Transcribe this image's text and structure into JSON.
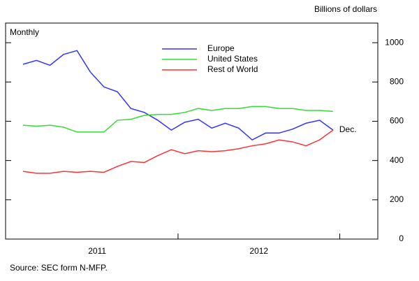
{
  "chart_data": {
    "type": "line",
    "unit_label": "Billions of dollars",
    "frequency_label": "Monthly",
    "source": "Source: SEC form N-MFP.",
    "end_annotation": "Dec.",
    "categories": [
      null,
      null,
      null,
      null,
      null,
      null,
      null,
      null,
      null,
      null,
      null,
      null,
      null,
      null,
      null,
      null,
      null,
      null,
      null,
      null,
      null,
      null,
      null,
      null
    ],
    "year_labels": [
      "2011",
      "2012"
    ],
    "series": [
      {
        "name": "Europe",
        "color": "#3333ff",
        "values": [
          890,
          910,
          885,
          940,
          960,
          850,
          775,
          750,
          665,
          645,
          605,
          555,
          595,
          610,
          565,
          590,
          565,
          505,
          540,
          540,
          560,
          590,
          605,
          555
        ]
      },
      {
        "name": "United States",
        "color": "#33dd33",
        "values": [
          580,
          575,
          580,
          570,
          545,
          545,
          545,
          605,
          610,
          630,
          635,
          635,
          645,
          665,
          655,
          665,
          665,
          675,
          675,
          665,
          665,
          655,
          655,
          650
        ]
      },
      {
        "name": "Rest of World",
        "color": "#ff3333",
        "values": [
          345,
          335,
          335,
          345,
          340,
          345,
          340,
          370,
          395,
          390,
          425,
          455,
          435,
          450,
          445,
          450,
          460,
          475,
          485,
          505,
          495,
          475,
          505,
          555
        ]
      }
    ],
    "ylim": [
      0,
      1100
    ],
    "yticks": [
      0,
      200,
      400,
      600,
      800,
      1000
    ],
    "axis_side": "right"
  }
}
